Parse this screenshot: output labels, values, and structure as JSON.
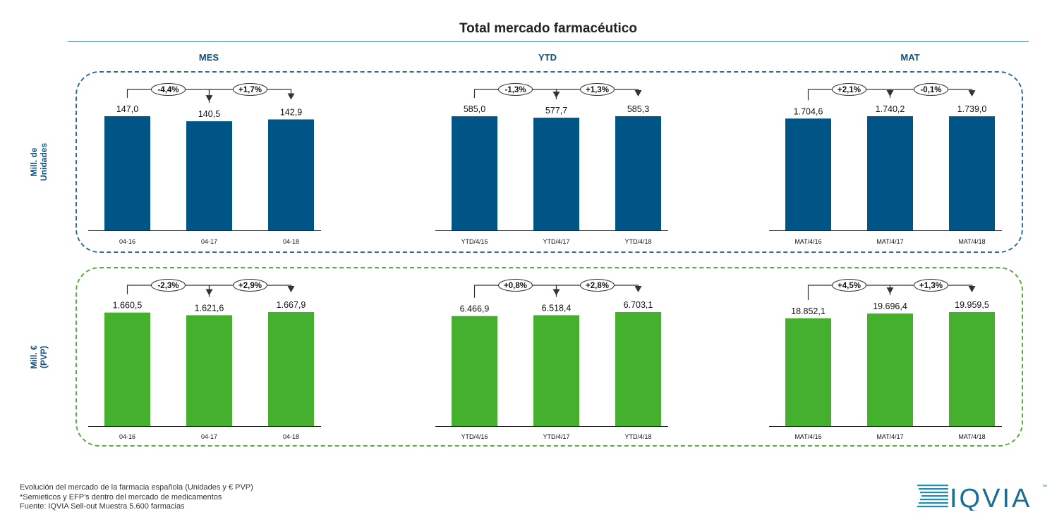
{
  "title": "Total mercado farmacéutico",
  "colors": {
    "units": "#005587",
    "euros": "#45b02e",
    "units_border": "#2d6f8f",
    "euros_border": "#5aac3e",
    "label": "#0d4f7e"
  },
  "sections": [
    "MES",
    "YTD",
    "MAT"
  ],
  "row_labels": {
    "units": [
      "Mill. de",
      "Unidades"
    ],
    "euros": [
      "Mill. €",
      "(PVP)"
    ]
  },
  "chart_data": [
    {
      "type": "bar",
      "row": "units",
      "panel": "MES",
      "categories": [
        "04-16",
        "04-17",
        "04-18"
      ],
      "values": [
        147.0,
        140.5,
        142.9
      ],
      "value_labels": [
        "147,0",
        "140,5",
        "142,9"
      ],
      "changes": [
        "-4,4%",
        "+1,7%"
      ]
    },
    {
      "type": "bar",
      "row": "units",
      "panel": "YTD",
      "categories": [
        "YTD/4/16",
        "YTD/4/17",
        "YTD/4/18"
      ],
      "values": [
        585.0,
        577.7,
        585.3
      ],
      "value_labels": [
        "585,0",
        "577,7",
        "585,3"
      ],
      "changes": [
        "-1,3%",
        "+1,3%"
      ]
    },
    {
      "type": "bar",
      "row": "units",
      "panel": "MAT",
      "categories": [
        "MAT/4/16",
        "MAT/4/17",
        "MAT/4/18"
      ],
      "values": [
        1704.6,
        1740.2,
        1739.0
      ],
      "value_labels": [
        "1.704,6",
        "1.740,2",
        "1.739,0"
      ],
      "changes": [
        "+2,1%",
        "-0,1%"
      ]
    },
    {
      "type": "bar",
      "row": "euros",
      "panel": "MES",
      "categories": [
        "04-16",
        "04-17",
        "04-18"
      ],
      "values": [
        1660.5,
        1621.6,
        1667.9
      ],
      "value_labels": [
        "1.660,5",
        "1.621,6",
        "1.667,9"
      ],
      "changes": [
        "-2,3%",
        "+2,9%"
      ]
    },
    {
      "type": "bar",
      "row": "euros",
      "panel": "YTD",
      "categories": [
        "YTD/4/16",
        "YTD/4/17",
        "YTD/4/18"
      ],
      "values": [
        6466.9,
        6518.4,
        6703.1
      ],
      "value_labels": [
        "6.466,9",
        "6.518,4",
        "6.703,1"
      ],
      "changes": [
        "+0,8%",
        "+2,8%"
      ]
    },
    {
      "type": "bar",
      "row": "euros",
      "panel": "MAT",
      "categories": [
        "MAT/4/16",
        "MAT/4/17",
        "MAT/4/18"
      ],
      "values": [
        18852.1,
        19696.4,
        19959.5
      ],
      "value_labels": [
        "18.852,1",
        "19.696,4",
        "19.959,5"
      ],
      "changes": [
        "+4,5%",
        "+1,3%"
      ]
    }
  ],
  "footer": [
    "Evolución del mercado de la farmacia española (Unidades y € PVP)",
    "*Semieticos y EFP's dentro del mercado de medicamentos",
    "Fuente: IQVIA Sell-out Muestra 5.600 farmacias"
  ],
  "logo": {
    "text": "IQVIA",
    "tm": "™"
  }
}
